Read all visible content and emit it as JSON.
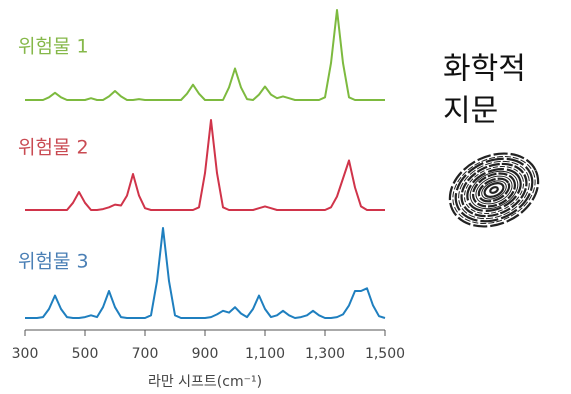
{
  "chart_data": {
    "type": "line",
    "x": [
      300,
      320,
      340,
      360,
      380,
      400,
      420,
      440,
      460,
      480,
      500,
      520,
      540,
      560,
      580,
      600,
      620,
      640,
      660,
      680,
      700,
      720,
      740,
      760,
      780,
      800,
      820,
      840,
      860,
      880,
      900,
      920,
      940,
      960,
      980,
      1000,
      1020,
      1040,
      1060,
      1080,
      1100,
      1120,
      1140,
      1160,
      1180,
      1200,
      1220,
      1240,
      1260,
      1280,
      1300,
      1320,
      1340,
      1360,
      1380,
      1400,
      1420,
      1440,
      1460,
      1480,
      1500
    ],
    "series": [
      {
        "name": "위험물 1",
        "color": "#7dba3f",
        "label_color": "#86b84a",
        "values": [
          0,
          0,
          0,
          0,
          3,
          8,
          3,
          0,
          0,
          0,
          0,
          2,
          0,
          0,
          4,
          10,
          4,
          0,
          0,
          1,
          0,
          0,
          0,
          0,
          0,
          0,
          0,
          7,
          17,
          7,
          0,
          0,
          0,
          0,
          14,
          35,
          14,
          1,
          0,
          6,
          15,
          6,
          2,
          4,
          2,
          0,
          0,
          0,
          0,
          0,
          3,
          41,
          100,
          41,
          3,
          0,
          0,
          0,
          0,
          0,
          0
        ]
      },
      {
        "name": "위험물 2",
        "color": "#d0344a",
        "label_color": "#c94a52",
        "values": [
          0,
          0,
          0,
          0,
          0,
          0,
          0,
          0,
          8,
          20,
          8,
          0,
          0,
          1,
          3,
          6,
          5,
          16,
          40,
          16,
          2,
          0,
          0,
          0,
          0,
          0,
          0,
          0,
          0,
          3,
          41,
          100,
          41,
          3,
          0,
          0,
          0,
          0,
          0,
          2,
          4,
          2,
          0,
          0,
          0,
          0,
          0,
          0,
          0,
          0,
          0,
          3,
          15,
          35,
          55,
          25,
          4,
          0,
          0,
          0,
          0
        ]
      },
      {
        "name": "위험물 3",
        "color": "#1f7fbf",
        "label_color": "#4a7fb5",
        "values": [
          0,
          0,
          0,
          1,
          10,
          25,
          10,
          1,
          0,
          0,
          1,
          3,
          1,
          12,
          30,
          12,
          1,
          0,
          0,
          0,
          0,
          3,
          41,
          100,
          41,
          3,
          0,
          0,
          0,
          0,
          0,
          1,
          4,
          8,
          6,
          12,
          5,
          1,
          10,
          25,
          10,
          1,
          3,
          8,
          3,
          0,
          1,
          3,
          8,
          3,
          0,
          0,
          1,
          4,
          14,
          30,
          30,
          33,
          14,
          2,
          0
        ]
      }
    ],
    "xlim": [
      300,
      1500
    ],
    "xticks": [
      300,
      500,
      700,
      900,
      {
        "value": 1100,
        "label": "1,100"
      },
      {
        "value": 1300,
        "label": "1,300"
      },
      {
        "value": 1500,
        "label": "1,500"
      }
    ],
    "xlabel": "라만 시프트(cm⁻¹)",
    "annotations": [
      "화학적",
      "지문"
    ]
  }
}
